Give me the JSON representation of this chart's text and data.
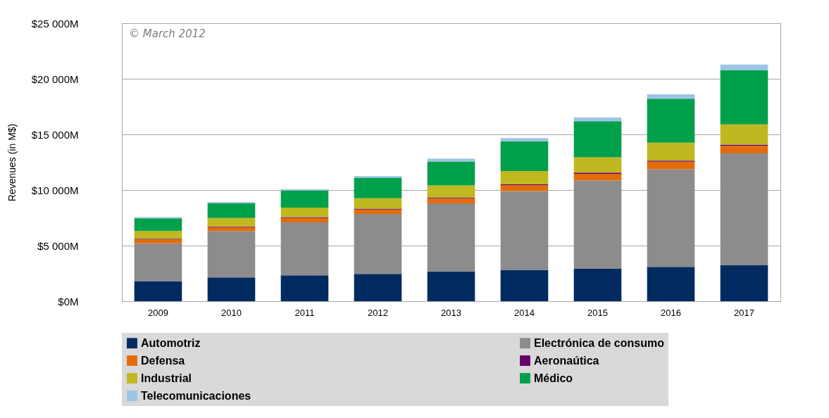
{
  "chart_data": {
    "type": "bar",
    "stacked": true,
    "ylabel": "Revenues (in M$)",
    "annotations": [
      "© March 2012"
    ],
    "categories": [
      "2009",
      "2010",
      "2011",
      "2012",
      "2013",
      "2014",
      "2015",
      "2016",
      "2017"
    ],
    "ylim": [
      0,
      25000
    ],
    "yticks": [
      {
        "value": 0,
        "label": "$0M"
      },
      {
        "value": 5000,
        "label": "$5 000M"
      },
      {
        "value": 10000,
        "label": "$10 000M"
      },
      {
        "value": 15000,
        "label": "$15 000M"
      },
      {
        "value": 20000,
        "label": "$20 000M"
      },
      {
        "value": 25000,
        "label": "$25 000M"
      }
    ],
    "grid": "y",
    "legend": "bottom",
    "series": [
      {
        "name": "Automotriz",
        "color": "#002a60",
        "values": [
          1800,
          2130,
          2320,
          2450,
          2670,
          2820,
          2910,
          3080,
          3230
        ]
      },
      {
        "name": "Electrónica de consumo",
        "color": "#8c8c8c",
        "values": [
          3400,
          4180,
          4770,
          5400,
          6130,
          7090,
          7940,
          8780,
          10060
        ]
      },
      {
        "name": "Defensa",
        "color": "#e36c09",
        "values": [
          350,
          350,
          400,
          400,
          450,
          520,
          600,
          680,
          680
        ]
      },
      {
        "name": "Aeronaútica",
        "color": "#660066",
        "values": [
          60,
          70,
          80,
          80,
          90,
          80,
          110,
          110,
          110
        ]
      },
      {
        "name": "Industrial",
        "color": "#c0b820",
        "values": [
          700,
          760,
          850,
          930,
          1070,
          1200,
          1390,
          1600,
          1820
        ]
      },
      {
        "name": "Médico",
        "color": "#00a04a",
        "values": [
          1150,
          1330,
          1520,
          1840,
          2150,
          2670,
          3230,
          3960,
          4890
        ]
      },
      {
        "name": "Telecomunicaciones",
        "color": "#9dc3e6",
        "values": [
          100,
          100,
          140,
          150,
          260,
          280,
          340,
          400,
          490
        ]
      }
    ]
  }
}
